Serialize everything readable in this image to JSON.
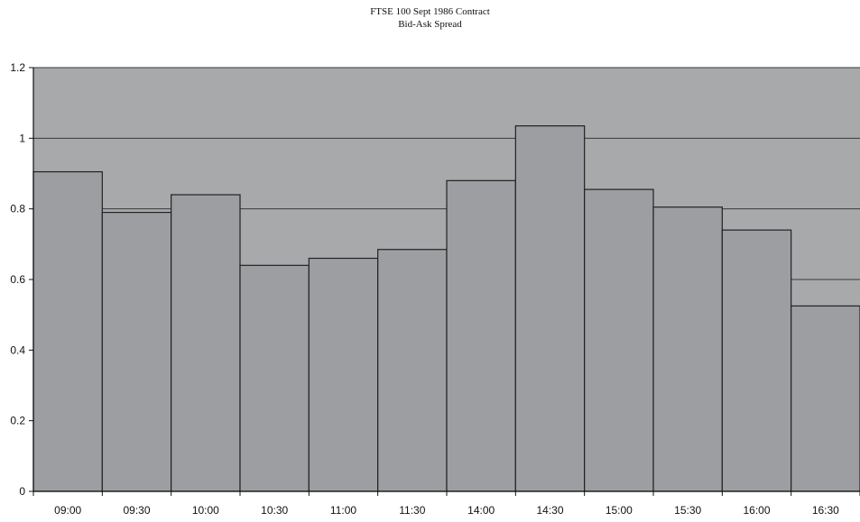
{
  "chart_data": {
    "type": "bar",
    "title": "FTSE 100 Sept 1986 Contract",
    "subtitle": "Bid-Ask Spread",
    "xlabel": "",
    "ylabel": "",
    "categories": [
      "09:00",
      "09:30",
      "10:00",
      "10:30",
      "11:00",
      "11:30",
      "14:00",
      "14:30",
      "15:00",
      "15:30",
      "16:00",
      "16:30"
    ],
    "values": [
      0.905,
      0.79,
      0.84,
      0.64,
      0.66,
      0.685,
      0.88,
      1.035,
      0.855,
      0.805,
      0.74,
      0.525
    ],
    "ylim": [
      0,
      1.2
    ],
    "yticks": [
      "0",
      "0.2",
      "0.4",
      "0.6",
      "0.8",
      "1",
      "1.2"
    ],
    "grid": true,
    "legend": "none",
    "colors": {
      "plot_bg": "#a7a9ab",
      "bar_fill": "#9c9ea1",
      "bar_stroke": "#222222",
      "grid": "#3a3a3a"
    }
  }
}
